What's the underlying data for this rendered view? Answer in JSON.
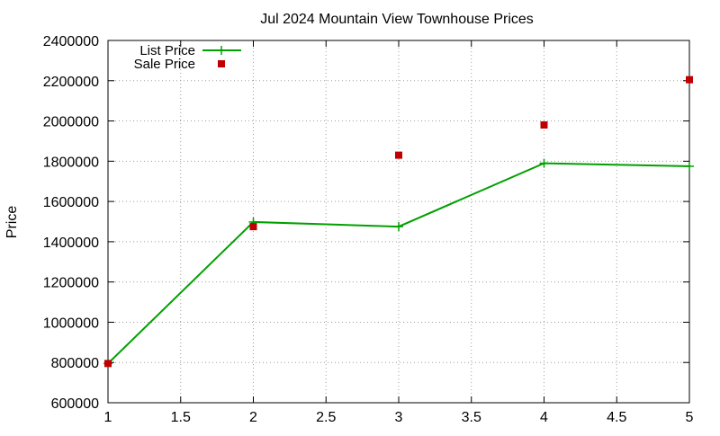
{
  "chart_data": {
    "type": "line",
    "title": "Jul 2024 Mountain View Townhouse Prices",
    "xlabel": "",
    "ylabel": "Price",
    "xlim": [
      1,
      5
    ],
    "ylim": [
      600000,
      2400000
    ],
    "x_ticks": [
      "1",
      "1.5",
      "2",
      "2.5",
      "3",
      "3.5",
      "4",
      "4.5",
      "5"
    ],
    "x_tick_values": [
      1,
      1.5,
      2,
      2.5,
      3,
      3.5,
      4,
      4.5,
      5
    ],
    "y_ticks": [
      "600000",
      "800000",
      "1000000",
      "1200000",
      "1400000",
      "1600000",
      "1800000",
      "2000000",
      "2200000",
      "2400000"
    ],
    "y_tick_values": [
      600000,
      800000,
      1000000,
      1200000,
      1400000,
      1600000,
      1800000,
      2000000,
      2200000,
      2400000
    ],
    "grid": true,
    "legend_position": "top-left",
    "series": [
      {
        "name": "List Price",
        "style": "line-with-plus-markers",
        "color": "#00a000",
        "x": [
          1,
          2,
          3,
          4,
          5
        ],
        "values": [
          795000,
          1498000,
          1475000,
          1790000,
          1775000
        ]
      },
      {
        "name": "Sale Price",
        "style": "square-points",
        "color": "#c00000",
        "x": [
          1,
          2,
          3,
          4,
          5
        ],
        "values": [
          795000,
          1475000,
          1830000,
          1980000,
          2205000
        ]
      }
    ]
  }
}
